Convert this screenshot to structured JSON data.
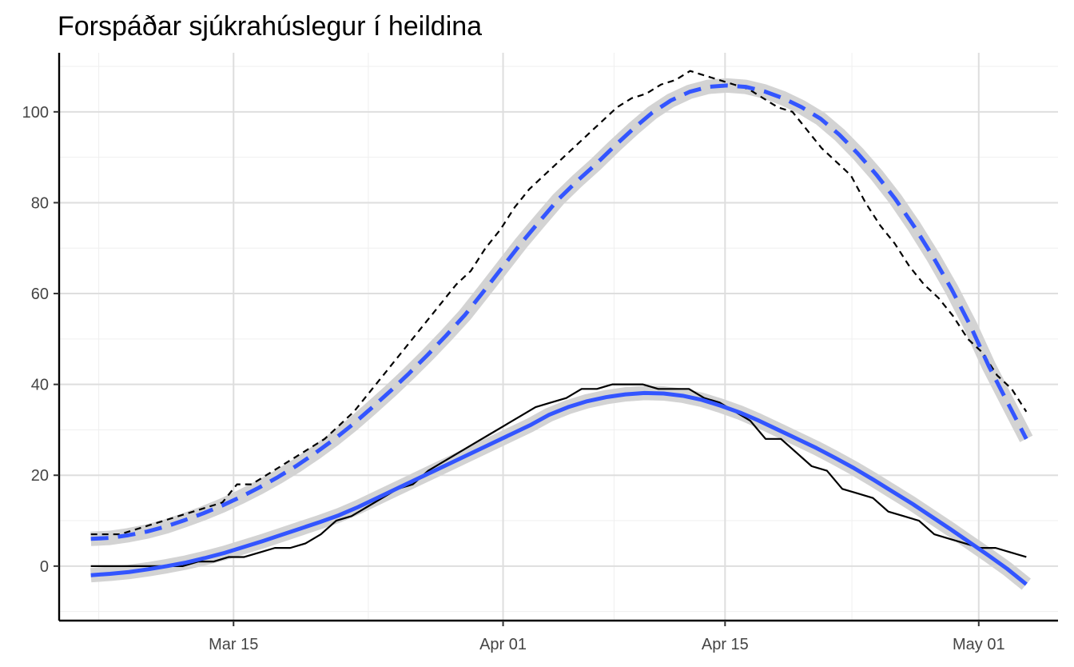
{
  "chart_data": {
    "type": "line",
    "title": "Forspáðar sjúkrahúslegur í heildina",
    "xlabel": "",
    "ylabel": "",
    "x_start": "2020-03-06",
    "x_end": "2020-05-04",
    "xlim": [
      "2020-03-04",
      "2020-05-06"
    ],
    "ylim": [
      -12,
      113
    ],
    "x_ticks": [
      {
        "date": "2020-03-15",
        "label": "Mar 15"
      },
      {
        "date": "2020-04-01",
        "label": "Apr 01"
      },
      {
        "date": "2020-04-15",
        "label": "Apr 15"
      },
      {
        "date": "2020-05-01",
        "label": "May 01"
      }
    ],
    "y_ticks": [
      0,
      20,
      40,
      60,
      80,
      100
    ],
    "grid": true,
    "legend": "none",
    "series": [
      {
        "style": "dashed",
        "color": "#000000",
        "values": [
          7,
          7,
          7,
          8,
          9,
          10,
          11,
          12,
          13,
          14,
          18,
          18,
          20,
          22,
          24,
          26,
          28,
          31,
          34,
          38,
          42,
          46,
          50,
          54,
          58,
          62,
          65,
          70,
          74,
          79,
          83,
          86,
          89,
          92,
          95,
          98,
          101,
          103,
          104,
          106,
          107,
          109,
          108,
          107,
          106,
          105,
          103,
          101,
          100,
          96,
          92,
          89,
          86,
          80,
          75,
          71,
          66,
          62,
          59,
          55,
          50,
          47,
          42,
          39,
          34
        ]
      },
      {
        "style": "solid",
        "color": "#000000",
        "values": [
          0,
          0,
          0,
          0,
          0,
          0,
          0,
          1,
          1,
          2,
          2,
          3,
          4,
          4,
          5,
          7,
          10,
          11,
          13,
          15,
          17,
          18,
          21,
          23,
          25,
          27,
          29,
          31,
          33,
          35,
          36,
          37,
          39,
          39,
          40,
          40,
          40,
          39,
          39,
          39,
          37,
          36,
          34,
          32,
          28,
          28,
          25,
          22,
          21,
          17,
          16,
          15,
          12,
          11,
          10,
          7,
          6,
          5,
          4,
          4,
          3,
          2
        ]
      },
      {
        "style": "dashed",
        "color": "#3355ff",
        "type": "smooth",
        "values": [
          6.0,
          6.2,
          6.8,
          7.6,
          8.7,
          10.1,
          11.6,
          13.3,
          15.2,
          17.3,
          19.6,
          22.1,
          24.9,
          27.9,
          31.2,
          34.8,
          38.5,
          42.4,
          46.5,
          50.8,
          55.3,
          60.5,
          65.8,
          71.1,
          76.0,
          80.8,
          84.8,
          88.5,
          92.5,
          96.3,
          99.8,
          102.5,
          104.4,
          105.5,
          105.8,
          105.5,
          104.5,
          103.0,
          101.0,
          98.5,
          95.0,
          90.8,
          86.1,
          80.8,
          74.8,
          68.2,
          61.0,
          53.0,
          44.0,
          36.0,
          28.0
        ]
      },
      {
        "style": "solid",
        "color": "#3355ff",
        "type": "smooth",
        "values": [
          -2.0,
          -1.7,
          -1.3,
          -0.7,
          0.0,
          0.8,
          1.8,
          2.9,
          4.2,
          5.5,
          6.9,
          8.3,
          9.7,
          11.2,
          13.0,
          15.0,
          17.0,
          19.0,
          21.0,
          23.0,
          25.0,
          27.0,
          29.0,
          31.0,
          33.3,
          35.0,
          36.3,
          37.2,
          37.8,
          38.1,
          38.0,
          37.5,
          36.6,
          35.3,
          33.8,
          32.0,
          30.0,
          28.0,
          26.0,
          23.8,
          21.5,
          19.0,
          16.4,
          13.8,
          11.0,
          8.2,
          5.3,
          2.4,
          -0.6,
          -4.0
        ]
      }
    ]
  }
}
